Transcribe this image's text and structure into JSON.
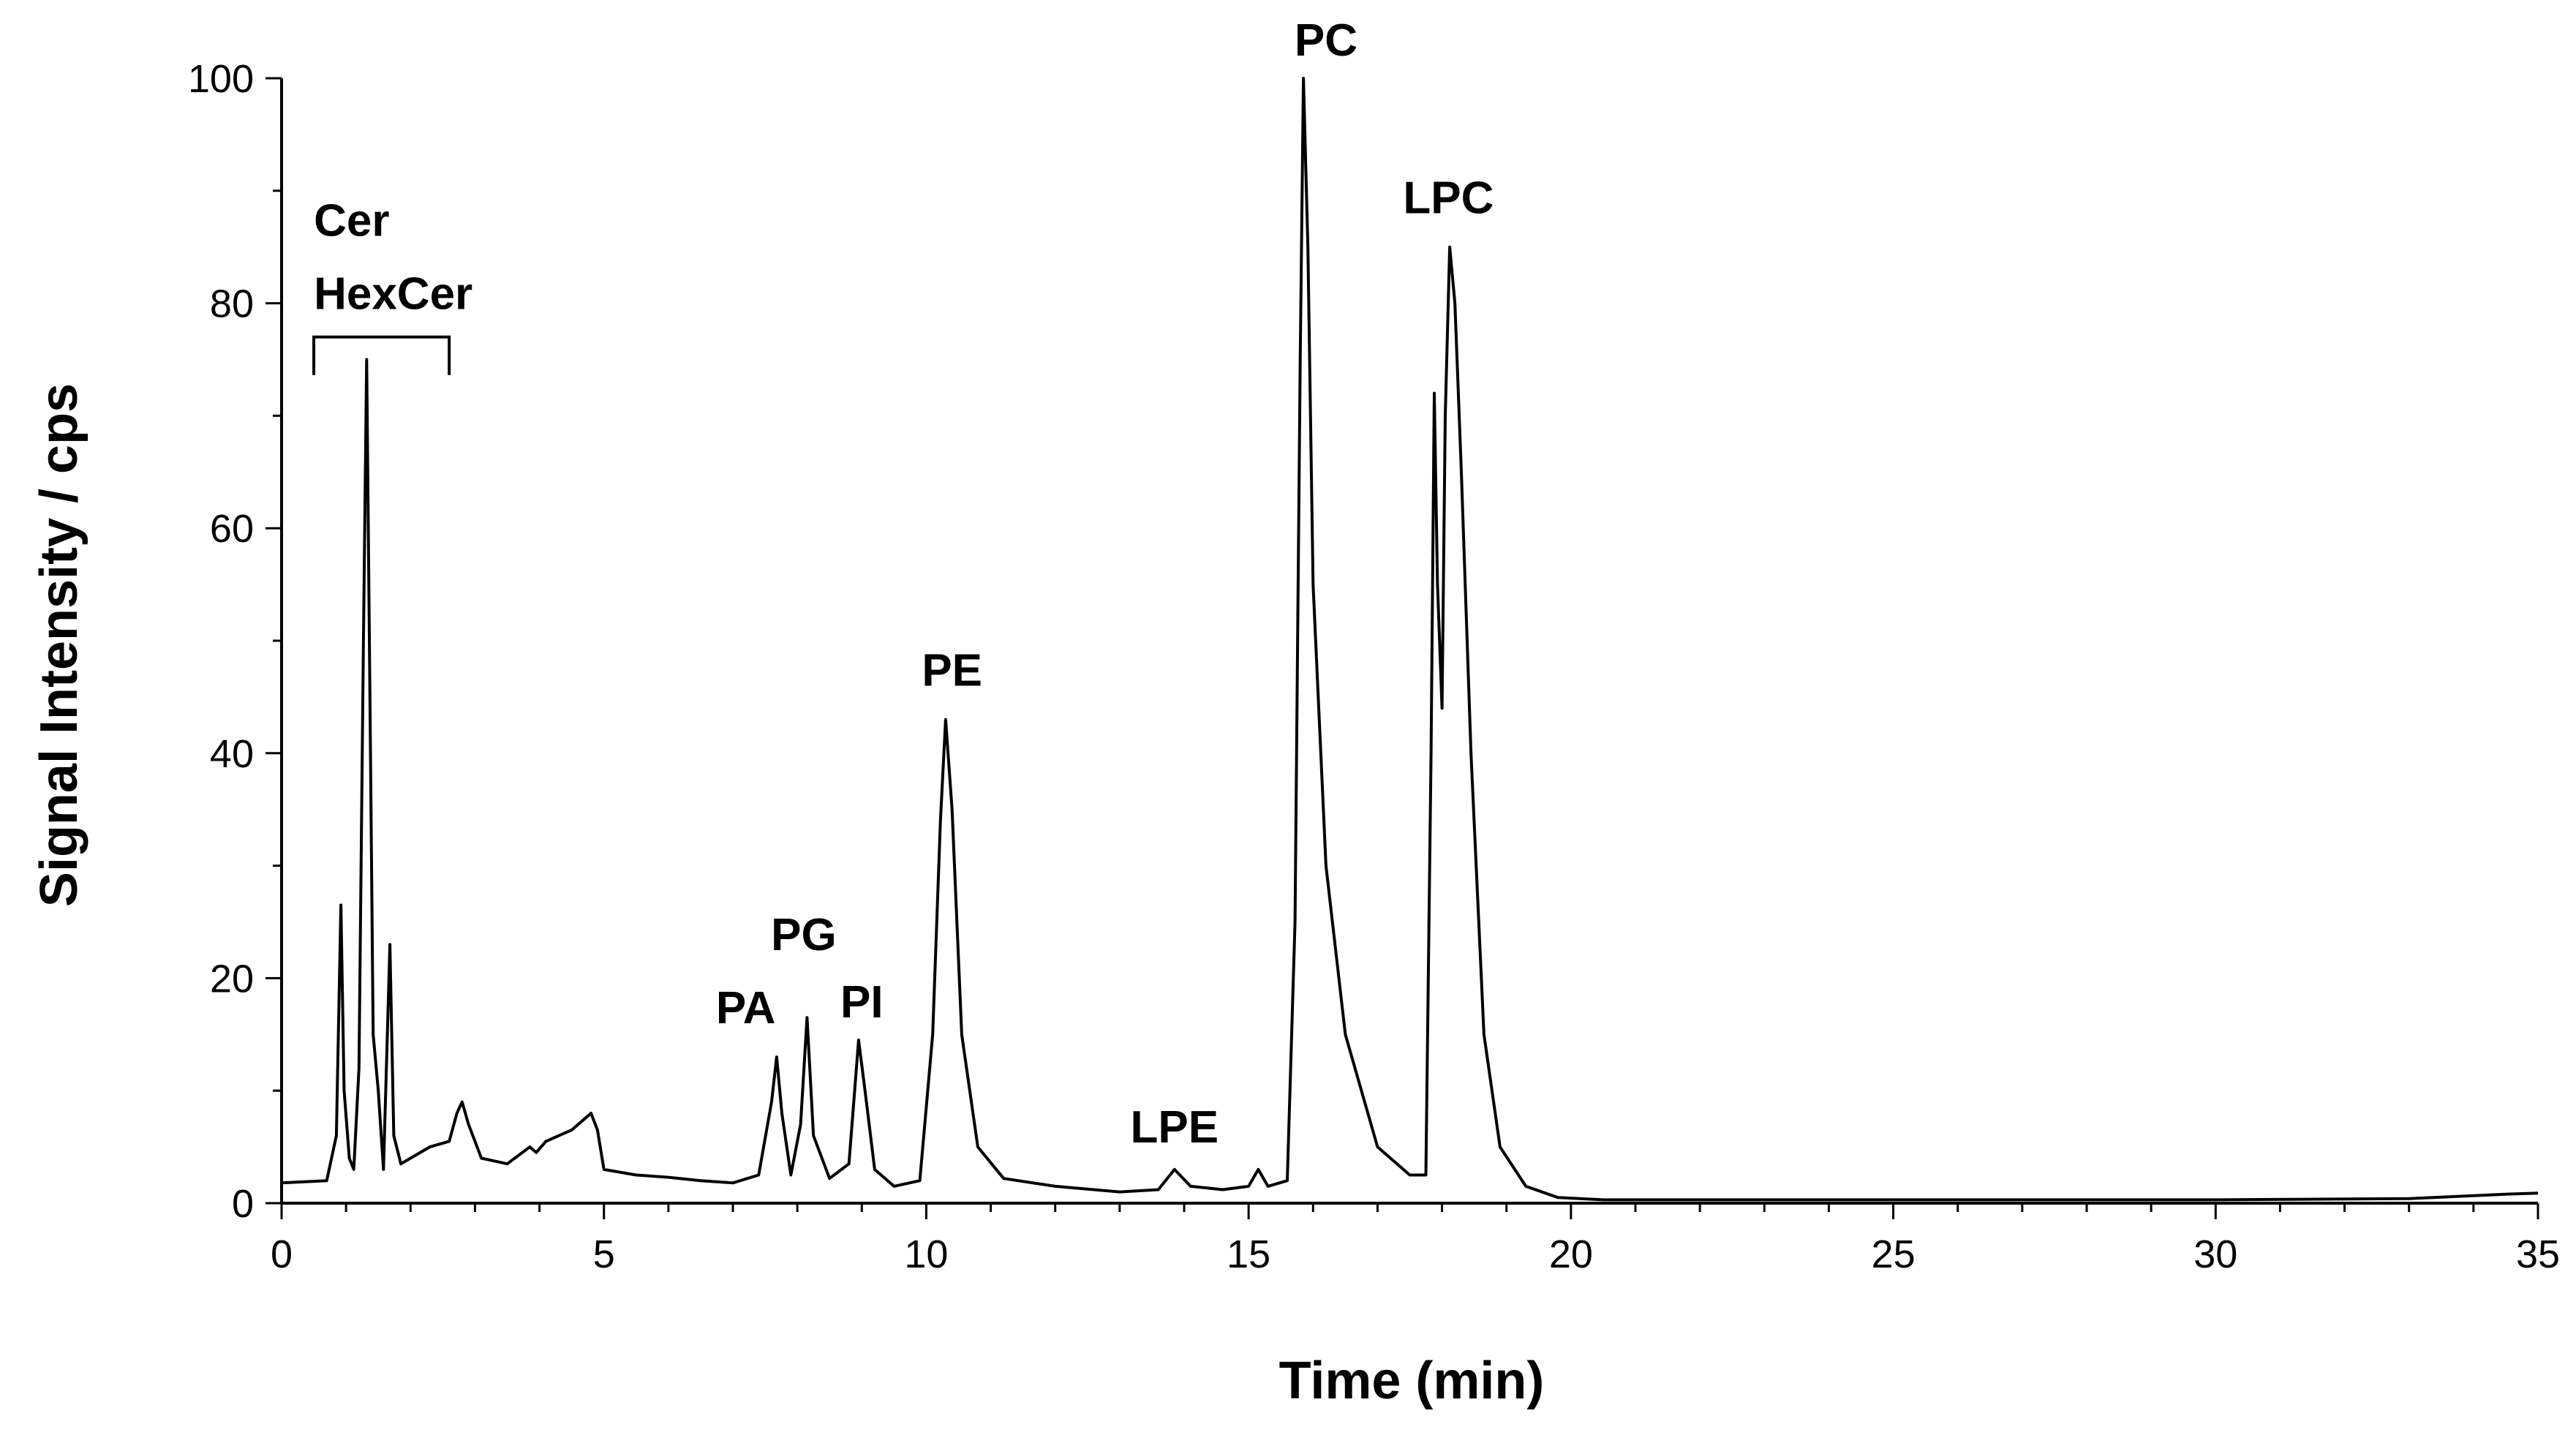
{
  "chart_data": {
    "type": "line",
    "title": "",
    "xlabel": "Time (min)",
    "ylabel": "Signal Intensity / cps",
    "xlim": [
      0,
      35
    ],
    "ylim": [
      0,
      100
    ],
    "x_ticks": [
      0,
      5,
      10,
      15,
      20,
      25,
      30,
      35
    ],
    "y_ticks": [
      0,
      20,
      40,
      60,
      80,
      100
    ],
    "grid": false,
    "legend": "none",
    "line_color": "#000000",
    "series": [
      {
        "name": "",
        "x": [
          0,
          0.7,
          0.85,
          0.92,
          0.97,
          1.05,
          1.12,
          1.2,
          1.27,
          1.32,
          1.37,
          1.42,
          1.5,
          1.58,
          1.64,
          1.68,
          1.74,
          1.85,
          2.0,
          2.3,
          2.6,
          2.72,
          2.8,
          2.9,
          3.1,
          3.5,
          3.85,
          3.95,
          4.1,
          4.3,
          4.5,
          4.7,
          4.8,
          4.9,
          5.0,
          5.5,
          6.0,
          6.5,
          7.0,
          7.4,
          7.6,
          7.68,
          7.76,
          7.9,
          8.05,
          8.15,
          8.25,
          8.5,
          8.8,
          8.95,
          9.05,
          9.2,
          9.5,
          9.9,
          10.1,
          10.22,
          10.3,
          10.4,
          10.55,
          10.8,
          11.2,
          12.0,
          13.0,
          13.6,
          13.85,
          14.1,
          14.6,
          15.0,
          15.15,
          15.3,
          15.6,
          15.72,
          15.8,
          15.85,
          15.92,
          16.0,
          16.2,
          16.5,
          17.0,
          17.5,
          17.75,
          17.83,
          17.88,
          17.93,
          18.0,
          18.05,
          18.12,
          18.2,
          18.3,
          18.45,
          18.65,
          18.9,
          19.3,
          19.8,
          20.5,
          25.0,
          30.0,
          33.0,
          34.5,
          35.0
        ],
        "y": [
          1.8,
          2.0,
          6.0,
          26.5,
          10.0,
          4.0,
          3.0,
          12.0,
          50.0,
          75.0,
          45.0,
          15.0,
          10.0,
          3.0,
          15.0,
          23.0,
          6.0,
          3.5,
          4.0,
          5.0,
          5.5,
          8.0,
          9.0,
          7.0,
          4.0,
          3.5,
          5.0,
          4.5,
          5.5,
          6.0,
          6.5,
          7.5,
          8.0,
          6.5,
          3.0,
          2.5,
          2.3,
          2.0,
          1.8,
          2.5,
          9.0,
          13.0,
          8.0,
          2.5,
          7.0,
          16.5,
          6.0,
          2.2,
          3.5,
          14.5,
          10.0,
          3.0,
          1.5,
          2.0,
          15.0,
          34.0,
          43.0,
          35.0,
          15.0,
          5.0,
          2.2,
          1.5,
          1.0,
          1.2,
          3.0,
          1.5,
          1.2,
          1.5,
          3.0,
          1.5,
          2.0,
          25.0,
          75.0,
          100.0,
          85.0,
          55.0,
          30.0,
          15.0,
          5.0,
          2.5,
          2.5,
          40.0,
          72.0,
          55.0,
          44.0,
          70.0,
          85.0,
          80.0,
          65.0,
          40.0,
          15.0,
          5.0,
          1.5,
          0.5,
          0.3,
          0.3,
          0.3,
          0.4,
          0.8,
          0.9
        ]
      }
    ],
    "annotations": [
      {
        "text": "Cer",
        "x": 0.5,
        "y": 86
      },
      {
        "text": "HexCer",
        "x": 0.5,
        "y": 79.5
      },
      {
        "text": "PA",
        "x": 7.2,
        "y": 16
      },
      {
        "text": "PG",
        "x": 8.1,
        "y": 22.5
      },
      {
        "text": "PI",
        "x": 9.0,
        "y": 16.5
      },
      {
        "text": "PE",
        "x": 10.4,
        "y": 46
      },
      {
        "text": "LPE",
        "x": 13.85,
        "y": 5.4
      },
      {
        "text": "PC",
        "x": 16.2,
        "y": 102
      },
      {
        "text": "LPC",
        "x": 18.1,
        "y": 88
      }
    ],
    "bracket": {
      "x_start": 0.5,
      "x_end": 2.6,
      "y": 77
    }
  }
}
